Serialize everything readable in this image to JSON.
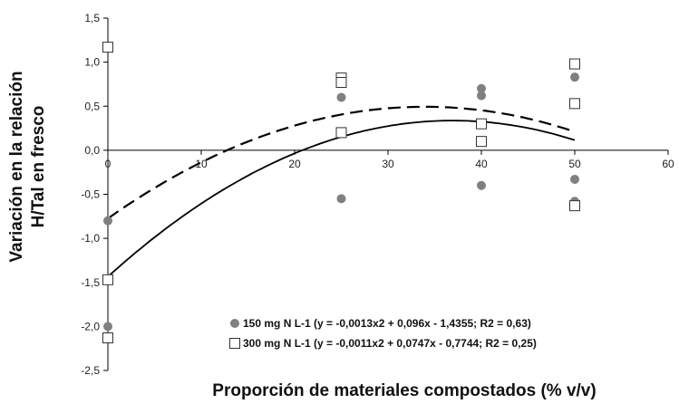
{
  "chart_data": {
    "type": "scatter",
    "xlabel": "Proporción de materiales compostados (% v/v)",
    "ylabel_lines": [
      "Variación en la relación",
      "H/Tal en fresco"
    ],
    "xlim": [
      0,
      60
    ],
    "ylim": [
      -2.5,
      1.5
    ],
    "x_ticks": [
      0,
      10,
      20,
      30,
      40,
      50,
      60
    ],
    "x_tick_labels": [
      "0",
      "10",
      "20",
      "30",
      "40",
      "50",
      "60"
    ],
    "y_ticks": [
      1.5,
      1.0,
      0.5,
      0.0,
      -0.5,
      -1.0,
      -1.5,
      -2.0,
      -2.5
    ],
    "y_tick_labels": [
      "1,5",
      "1,0",
      "0,5",
      "0,0",
      "-0,5",
      "-1,0",
      "-1,5",
      "-2,0",
      "-2,5"
    ],
    "grid": false,
    "legend_position": "bottom-right",
    "series": [
      {
        "name": "150 mg N L-1 (y = -0,0013x2 + 0,096x - 1,4355; R2 = 0,63)",
        "marker": "filled-circle",
        "color": "#808080",
        "points": [
          {
            "x": 0,
            "y": -0.8
          },
          {
            "x": 0,
            "y": -2.0
          },
          {
            "x": 25,
            "y": 0.6
          },
          {
            "x": 25,
            "y": -0.55
          },
          {
            "x": 40,
            "y": 0.7
          },
          {
            "x": 40,
            "y": 0.62
          },
          {
            "x": 40,
            "y": -0.4
          },
          {
            "x": 50,
            "y": 0.83
          },
          {
            "x": 50,
            "y": -0.33
          },
          {
            "x": 50,
            "y": -0.58
          }
        ],
        "fit": {
          "a": -0.0013,
          "b": 0.096,
          "c": -1.4355,
          "x_range": [
            0,
            50
          ],
          "line": "solid"
        }
      },
      {
        "name": "300 mg N L-1 (y = -0,0011x2 + 0,0747x - 0,7744; R2 = 0,25)",
        "marker": "open-square",
        "color": "#333333",
        "points": [
          {
            "x": 0,
            "y": 1.17
          },
          {
            "x": 0,
            "y": -1.47
          },
          {
            "x": 0,
            "y": -2.13
          },
          {
            "x": 25,
            "y": 0.82
          },
          {
            "x": 25,
            "y": 0.77
          },
          {
            "x": 25,
            "y": 0.2
          },
          {
            "x": 40,
            "y": 0.3
          },
          {
            "x": 40,
            "y": 0.1
          },
          {
            "x": 50,
            "y": 0.98
          },
          {
            "x": 50,
            "y": 0.53
          },
          {
            "x": 50,
            "y": -0.63
          }
        ],
        "fit": {
          "a": -0.0011,
          "b": 0.0747,
          "c": -0.7744,
          "x_range": [
            0,
            50
          ],
          "line": "dashed"
        }
      }
    ]
  }
}
